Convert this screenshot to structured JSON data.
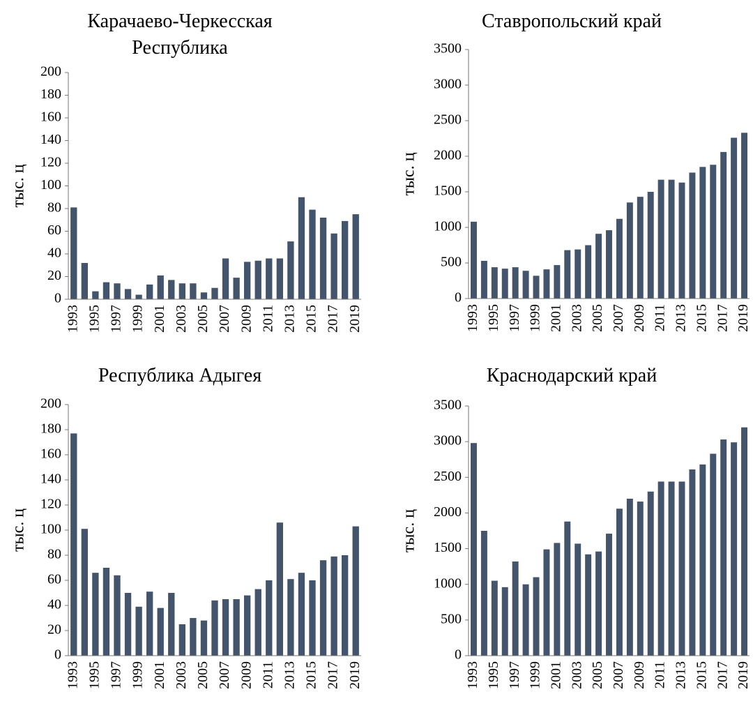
{
  "chart_data": [
    {
      "type": "bar",
      "title": "Карачаево-Черкесская Республика",
      "ylabel": "тыс. ц",
      "categories": [
        "1993",
        null,
        "1995",
        null,
        "1997",
        null,
        "1999",
        null,
        "2001",
        null,
        "2003",
        null,
        "2005",
        null,
        "2007",
        null,
        "2009",
        null,
        "2011",
        null,
        "2013",
        null,
        "2015",
        null,
        "2017",
        null,
        "2019"
      ],
      "values": [
        81,
        32,
        7,
        15,
        14,
        9,
        4,
        13,
        21,
        17,
        14,
        14,
        6,
        10,
        36,
        19,
        33,
        34,
        36,
        36,
        51,
        90,
        79,
        72,
        58,
        69,
        75
      ],
      "color": "#44546a",
      "ylim": [
        0,
        200
      ],
      "yticks": [
        0,
        20,
        40,
        60,
        80,
        100,
        120,
        140,
        160,
        180,
        200
      ]
    },
    {
      "type": "bar",
      "title": "Ставропольский край",
      "ylabel": "тыс. ц",
      "categories": [
        "1993",
        null,
        "1995",
        null,
        "1997",
        null,
        "1999",
        null,
        "2001",
        null,
        "2003",
        null,
        "2005",
        null,
        "2007",
        null,
        "2009",
        null,
        "2011",
        null,
        "2013",
        null,
        "2015",
        null,
        "2017",
        null,
        "2019"
      ],
      "values": [
        1080,
        530,
        440,
        420,
        440,
        390,
        320,
        410,
        470,
        680,
        690,
        750,
        910,
        960,
        1120,
        1350,
        1430,
        1500,
        1670,
        1670,
        1630,
        1770,
        1850,
        1880,
        2060,
        2260,
        2330
      ],
      "color": "#44546a",
      "ylim": [
        0,
        3500
      ],
      "yticks": [
        0,
        500,
        1000,
        1500,
        2000,
        2500,
        3000,
        3500
      ]
    },
    {
      "type": "bar",
      "title": "Республика Адыгея",
      "ylabel": "тыс. ц",
      "categories": [
        "1993",
        null,
        "1995",
        null,
        "1997",
        null,
        "1999",
        null,
        "2001",
        null,
        "2003",
        null,
        "2005",
        null,
        "2007",
        null,
        "2009",
        null,
        "2011",
        null,
        "2013",
        null,
        "2015",
        null,
        "2017",
        null,
        "2019"
      ],
      "values": [
        177,
        101,
        66,
        70,
        64,
        50,
        39,
        51,
        38,
        50,
        25,
        30,
        28,
        44,
        45,
        45,
        48,
        53,
        60,
        106,
        61,
        66,
        60,
        76,
        79,
        80,
        103
      ],
      "color": "#44546a",
      "ylim": [
        0,
        200
      ],
      "yticks": [
        0,
        20,
        40,
        60,
        80,
        100,
        120,
        140,
        160,
        180,
        200
      ]
    },
    {
      "type": "bar",
      "title": "Краснодарский край",
      "ylabel": "тыс. ц",
      "categories": [
        "1993",
        null,
        "1995",
        null,
        "1997",
        null,
        "1999",
        null,
        "2001",
        null,
        "2003",
        null,
        "2005",
        null,
        "2007",
        null,
        "2009",
        null,
        "2011",
        null,
        "2013",
        null,
        "2015",
        null,
        "2017",
        null,
        "2019"
      ],
      "values": [
        2980,
        1750,
        1050,
        960,
        1320,
        1000,
        1100,
        1490,
        1580,
        1880,
        1570,
        1420,
        1460,
        1710,
        2060,
        2200,
        2160,
        2300,
        2440,
        2440,
        2440,
        2610,
        2680,
        2830,
        3030,
        2990,
        3200
      ],
      "color": "#44546a",
      "ylim": [
        0,
        3500
      ],
      "yticks": [
        0,
        500,
        1000,
        1500,
        2000,
        2500,
        3000,
        3500
      ]
    }
  ]
}
